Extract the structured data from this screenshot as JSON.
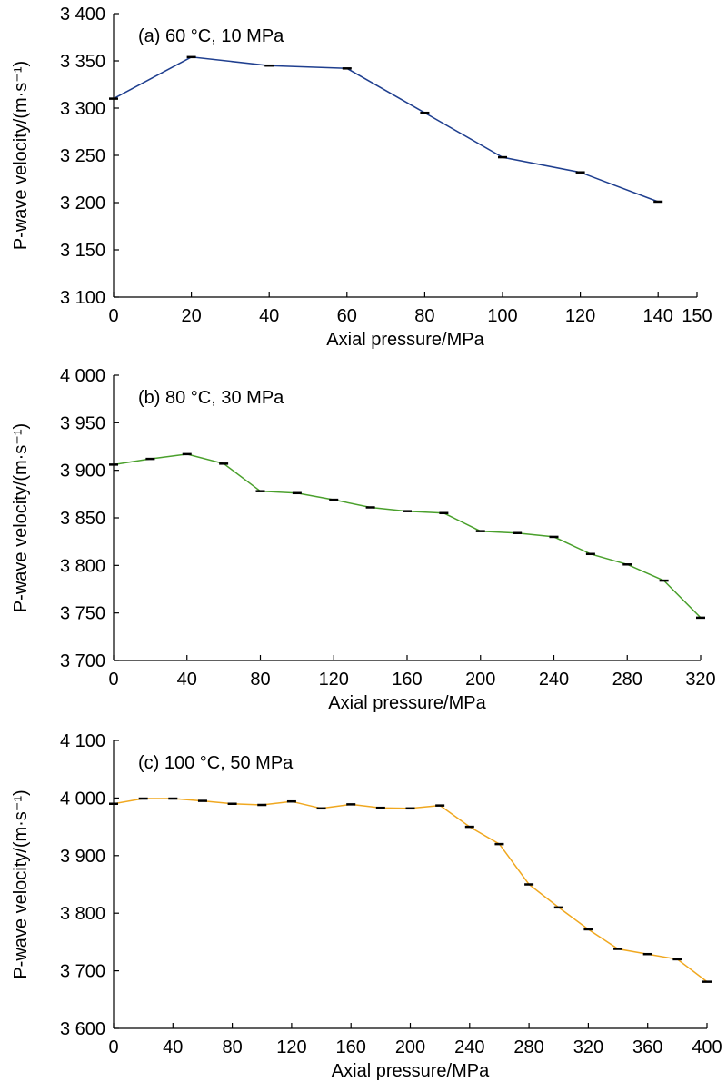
{
  "chart_data": [
    {
      "type": "line",
      "annotation": "(a) 60 °C, 10 MPa",
      "xlabel": "Axial pressure/MPa",
      "ylabel": "P-wave velocity/(m·s⁻¹)",
      "xlim": [
        0,
        150
      ],
      "ylim": [
        3100,
        3400
      ],
      "xticks": [
        0,
        20,
        40,
        60,
        80,
        100,
        120,
        140,
        150
      ],
      "xtick_labels": [
        "0",
        "20",
        "40",
        "60",
        "80",
        "100",
        "120",
        "140",
        "150"
      ],
      "yticks": [
        3100,
        3150,
        3200,
        3250,
        3300,
        3350,
        3400
      ],
      "ytick_labels": [
        "3 100",
        "3 150",
        "3 200",
        "3 250",
        "3 300",
        "3 350",
        "3 400"
      ],
      "color": "#1f3f8f",
      "grid": false,
      "x": [
        0,
        20,
        40,
        60,
        80,
        100,
        120,
        140
      ],
      "y": [
        3310,
        3354,
        3345,
        3342,
        3295,
        3248,
        3232,
        3201
      ]
    },
    {
      "type": "line",
      "annotation": "(b) 80 °C, 30 MPa",
      "xlabel": "Axial pressure/MPa",
      "ylabel": "P-wave velocity/(m·s⁻¹)",
      "xlim": [
        0,
        320
      ],
      "ylim": [
        3700,
        4000
      ],
      "xticks": [
        0,
        40,
        80,
        120,
        160,
        200,
        240,
        280,
        320
      ],
      "xtick_labels": [
        "0",
        "40",
        "80",
        "120",
        "160",
        "200",
        "240",
        "280",
        "320"
      ],
      "yticks": [
        3700,
        3750,
        3800,
        3850,
        3900,
        3950,
        4000
      ],
      "ytick_labels": [
        "3 700",
        "3 750",
        "3 800",
        "3 850",
        "3 900",
        "3 950",
        "4 000"
      ],
      "color": "#4aa02c",
      "grid": false,
      "x": [
        0,
        20,
        40,
        60,
        80,
        100,
        120,
        140,
        160,
        180,
        200,
        220,
        240,
        260,
        280,
        300,
        320
      ],
      "y": [
        3906,
        3912,
        3917,
        3907,
        3878,
        3876,
        3869,
        3861,
        3857,
        3855,
        3836,
        3834,
        3830,
        3812,
        3801,
        3784,
        3745
      ]
    },
    {
      "type": "line",
      "annotation": "(c) 100 °C, 50 MPa",
      "xlabel": "Axial pressure/MPa",
      "ylabel": "P-wave velocity/(m·s⁻¹)",
      "xlim": [
        0,
        400
      ],
      "ylim": [
        3600,
        4100
      ],
      "xticks": [
        0,
        40,
        80,
        120,
        160,
        200,
        240,
        280,
        320,
        360,
        400
      ],
      "xtick_labels": [
        "0",
        "40",
        "80",
        "120",
        "160",
        "200",
        "240",
        "280",
        "320",
        "360",
        "400"
      ],
      "yticks": [
        3600,
        3700,
        3800,
        3900,
        4000,
        4100
      ],
      "ytick_labels": [
        "3 600",
        "3 700",
        "3 800",
        "3 900",
        "4 000",
        "4 100"
      ],
      "color": "#f0a820",
      "grid": false,
      "x": [
        0,
        20,
        40,
        60,
        80,
        100,
        120,
        140,
        160,
        180,
        200,
        220,
        240,
        260,
        280,
        300,
        320,
        340,
        360,
        380,
        400
      ],
      "y": [
        3990,
        3999,
        3999,
        3995,
        3990,
        3988,
        3994,
        3982,
        3989,
        3983,
        3982,
        3987,
        3950,
        3920,
        3850,
        3810,
        3772,
        3738,
        3729,
        3720,
        3681
      ]
    }
  ]
}
